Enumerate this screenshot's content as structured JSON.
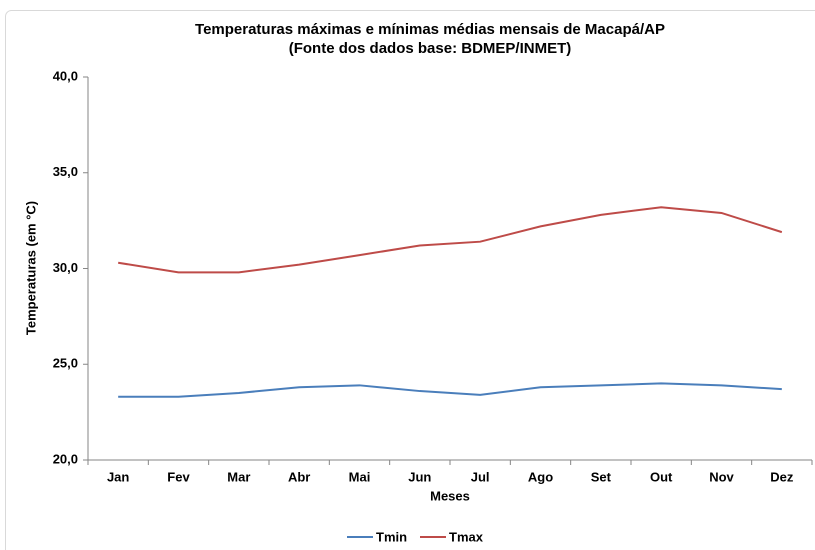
{
  "chart_data": {
    "type": "line",
    "title": "Temperaturas máximas e mínimas médias mensais de Macapá/AP",
    "subtitle": "(Fonte dos dados base: BDMEP/INMET)",
    "xlabel": "Meses",
    "ylabel": "Temperaturas (em °C)",
    "categories": [
      "Jan",
      "Fev",
      "Mar",
      "Abr",
      "Mai",
      "Jun",
      "Jul",
      "Ago",
      "Set",
      "Out",
      "Nov",
      "Dez"
    ],
    "series": [
      {
        "name": "Tmin",
        "color": "#4a7ebb",
        "values": [
          23.3,
          23.3,
          23.5,
          23.8,
          23.9,
          23.6,
          23.4,
          23.8,
          23.9,
          24.0,
          23.9,
          23.7
        ]
      },
      {
        "name": "Tmax",
        "color": "#be4b48",
        "values": [
          30.3,
          29.8,
          29.8,
          30.2,
          30.7,
          31.2,
          31.4,
          32.2,
          32.8,
          33.2,
          32.9,
          31.9
        ]
      }
    ],
    "ylim": [
      20,
      40
    ],
    "yticks": [
      {
        "value": 20,
        "label": "20,0"
      },
      {
        "value": 25,
        "label": "25,0"
      },
      {
        "value": 30,
        "label": "30,0"
      },
      {
        "value": 35,
        "label": "35,0"
      },
      {
        "value": 40,
        "label": "40,0"
      }
    ],
    "grid": false,
    "legend": "bottom"
  }
}
